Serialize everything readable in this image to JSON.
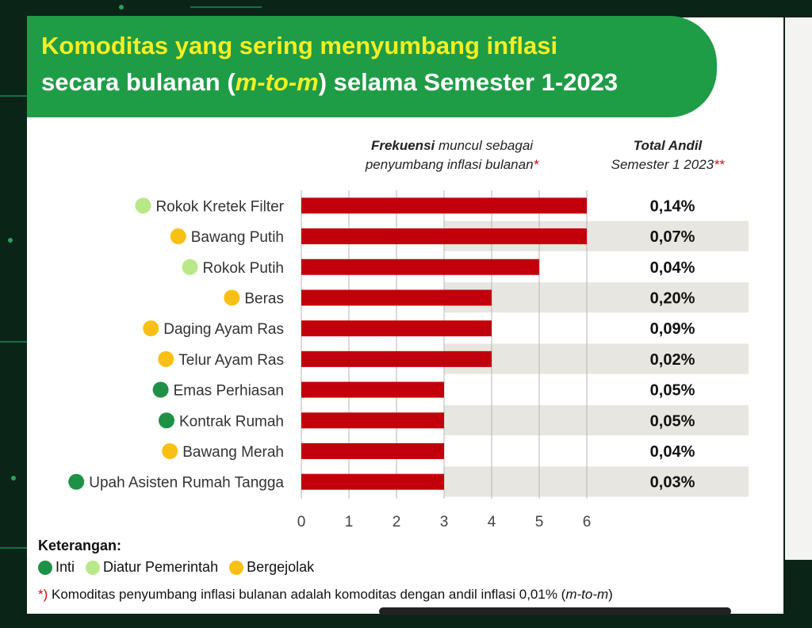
{
  "title": {
    "line1": "Komoditas yang sering menyumbang inflasi",
    "line2_prefix": "secara bulanan (",
    "line2_accent": "m-to-m",
    "line2_suffix": ") selama Semester 1-2023"
  },
  "headers": {
    "freq_bold": "Frekuensi",
    "freq_rest": " muncul sebagai",
    "freq_line2": "penyumbang inflasi bulanan",
    "freq_mark": "*",
    "total_line1": "Total Andil",
    "total_line2": "Semester 1 2023",
    "total_mark": "**"
  },
  "colors": {
    "bar": "#c2000b",
    "inti": "#1e9146",
    "diatur_pemerintah": "#b9e88a",
    "bergejolak": "#f8c015",
    "banner": "#1f9c46",
    "row_shade": "#e8e6e0"
  },
  "chart_data": {
    "type": "bar",
    "orientation": "horizontal",
    "categories": [
      "Rokok Kretek Filter",
      "Bawang Putih",
      "Rokok Putih",
      "Beras",
      "Daging Ayam Ras",
      "Telur Ayam Ras",
      "Emas Perhiasan",
      "Kontrak Rumah",
      "Bawang Merah",
      "Upah Asisten Rumah Tangga"
    ],
    "groups": [
      "diatur_pemerintah",
      "bergejolak",
      "diatur_pemerintah",
      "bergejolak",
      "bergejolak",
      "bergejolak",
      "inti",
      "inti",
      "bergejolak",
      "inti"
    ],
    "values": [
      6,
      6,
      5,
      4,
      4,
      4,
      3,
      3,
      3,
      3
    ],
    "total_andil": [
      "0,14%",
      "0,07%",
      "0,04%",
      "0,20%",
      "0,09%",
      "0,02%",
      "0,05%",
      "0,05%",
      "0,04%",
      "0,03%"
    ],
    "xlim": [
      0,
      6
    ],
    "xticks": [
      "0",
      "1",
      "2",
      "3",
      "4",
      "5",
      "6"
    ],
    "grid": true
  },
  "legend": {
    "title": "Keterangan:",
    "items": [
      {
        "label": "Inti",
        "color": "#1e9146"
      },
      {
        "label": "Diatur Pemerintah",
        "color": "#b9e88a"
      },
      {
        "label": "Bergejolak",
        "color": "#f8c015"
      }
    ]
  },
  "notes": {
    "note1_mark": "*)",
    "note1_text": " Komoditas penyumbang inflasi bulanan adalah komoditas dengan andil inflasi 0,01% (",
    "note1_italic": "m-to-m",
    "note1_end": ")"
  }
}
